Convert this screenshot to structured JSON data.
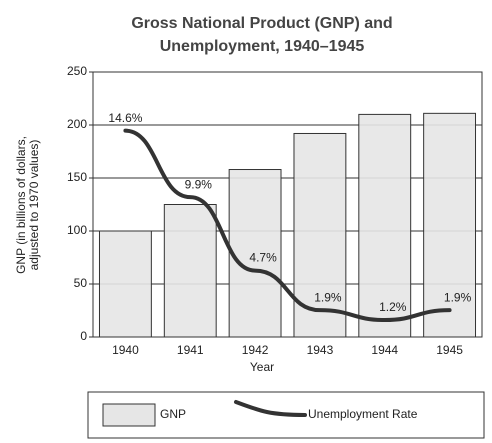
{
  "chart_data": {
    "type": "bar-line",
    "title": [
      "Gross National Product (GNP) and",
      "Unemployment, 1940–1945"
    ],
    "y_label": [
      "GNP (in billions of dollars,",
      "adjusted to 1970 values)"
    ],
    "x_label": "Year",
    "categories": [
      "1940",
      "1941",
      "1942",
      "1943",
      "1944",
      "1945"
    ],
    "series": [
      {
        "name": "GNP",
        "type": "bar",
        "color": "#e6e6e6",
        "values": [
          100,
          125,
          158,
          192,
          210,
          211
        ]
      },
      {
        "name": "Unemployment Rate",
        "type": "line",
        "axis": "y2",
        "color": "#333333",
        "values": [
          14.6,
          9.9,
          4.7,
          1.9,
          1.2,
          1.9
        ],
        "value_labels": [
          "14.6%",
          "9.9%",
          "4.7%",
          "1.9%",
          "1.2%",
          "1.9%"
        ]
      }
    ],
    "ylim": [
      0,
      250
    ],
    "yticks": [
      0,
      50,
      100,
      150,
      200,
      250
    ],
    "y2lim": [
      0,
      18.75
    ],
    "grid": true,
    "legend": "bottom"
  }
}
